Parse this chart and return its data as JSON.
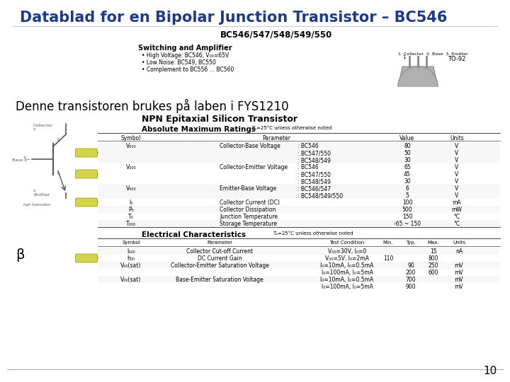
{
  "title": "Datablad for en Bipolar Junction Transistor – BC546",
  "title_color": "#1e3a8a",
  "title_fontsize": 15,
  "subtitle": "Denne transistoren brukes på laben i FYS1210",
  "subtitle_fontsize": 12,
  "subtitle_color": "#000000",
  "beta_label": "β",
  "page_number": "10",
  "bg_color": "#ffffff",
  "datasheet_header": "BC546/547/548/549/550",
  "section1_title": "Switching and Amplifier",
  "section1_bullets": [
    "High Voltage: BC546, V₀₀=65V",
    "Low Noise: BC549, BC550",
    "Complement to BC556 … BC560"
  ],
  "npn_title": "NPN Epitaxial Silicon Transistor",
  "abs_max_title": "Absolute Maximum Ratings",
  "abs_max_note": "Tₐ=25°C unless otherwise noted",
  "abs_max_headers": [
    "Symbol",
    "Parameter",
    "Value",
    "Units"
  ],
  "elec_char_title": "Electrical Characteristics",
  "elec_char_note": "Tₐ=25°C unless otherwise noted",
  "elec_char_headers": [
    "Symbol",
    "Parameter",
    "Test Condition",
    "Min.",
    "Typ.",
    "Max.",
    "Units"
  ],
  "to92_label": "TO-92",
  "to92_pins": "1. Collector  2. Base  3. Emitter",
  "arrow_color": "#d4d44a",
  "page_bg": "#ffffff"
}
